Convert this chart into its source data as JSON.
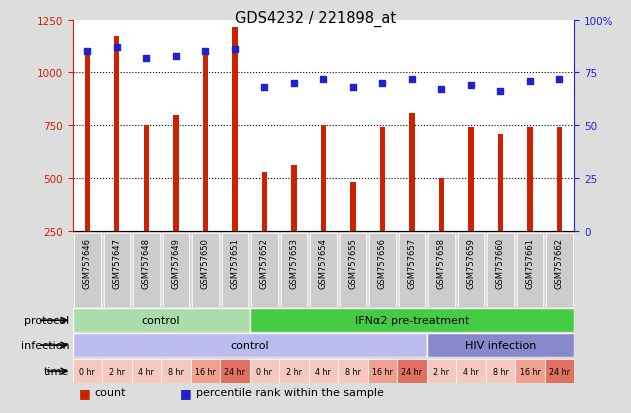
{
  "title": "GDS4232 / 221898_at",
  "samples": [
    "GSM757646",
    "GSM757647",
    "GSM757648",
    "GSM757649",
    "GSM757650",
    "GSM757651",
    "GSM757652",
    "GSM757653",
    "GSM757654",
    "GSM757655",
    "GSM757656",
    "GSM757657",
    "GSM757658",
    "GSM757659",
    "GSM757660",
    "GSM757661",
    "GSM757662"
  ],
  "counts": [
    1100,
    1175,
    750,
    800,
    1100,
    1215,
    530,
    560,
    750,
    480,
    740,
    810,
    500,
    740,
    710,
    740,
    740
  ],
  "percentile_ranks": [
    85,
    87,
    82,
    83,
    85,
    86,
    68,
    70,
    72,
    68,
    70,
    72,
    67,
    69,
    66,
    71,
    72
  ],
  "ylim_left": [
    250,
    1250
  ],
  "ylim_right": [
    0,
    100
  ],
  "yticks_left": [
    250,
    500,
    750,
    1000,
    1250
  ],
  "yticks_right": [
    0,
    25,
    50,
    75,
    100
  ],
  "bar_color": "#cc2200",
  "dot_color": "#2222cc",
  "bg_color": "#dddddd",
  "chart_bg": "#ffffff",
  "left_label_color": "#cc2200",
  "right_label_color": "#2222cc",
  "time_colors": [
    "#f5c8c0",
    "#f5c8c0",
    "#f5c8c0",
    "#f5c8c0",
    "#f0a090",
    "#e07060",
    "#f5c8c0",
    "#f5c8c0",
    "#f5c8c0",
    "#f5c8c0",
    "#f0a090",
    "#e07060",
    "#f5c8c0",
    "#f5c8c0",
    "#f5c8c0",
    "#f0a090",
    "#e07060"
  ],
  "time_labels": [
    "0 hr",
    "2 hr",
    "4 hr",
    "8 hr",
    "16 hr",
    "24 hr",
    "0 hr",
    "2 hr",
    "4 hr",
    "8 hr",
    "16 hr",
    "24 hr",
    "2 hr",
    "4 hr",
    "8 hr",
    "16 hr",
    "24 hr"
  ]
}
